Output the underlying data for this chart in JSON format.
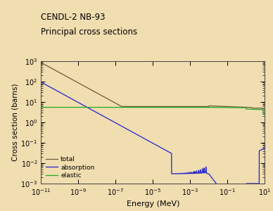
{
  "title_line1": "CENDL-2 NB-93",
  "title_line2": "Principal cross sections",
  "xlabel": "Energy (MeV)",
  "ylabel": "Cross section (barns)",
  "xlim": [
    1e-11,
    10.0
  ],
  "ylim": [
    0.001,
    1000.0
  ],
  "bg_color": "#f0ddb0",
  "plot_bg_color": "#f0ddb0",
  "line_colors": {
    "total": "#6b5a3e",
    "absorption": "#2222cc",
    "elastic": "#22aa22"
  },
  "legend_labels": [
    "total",
    "absorption",
    "elastic"
  ]
}
